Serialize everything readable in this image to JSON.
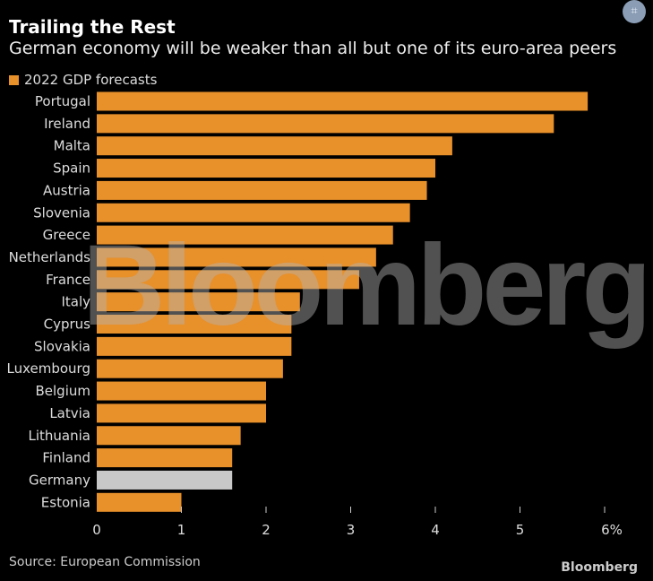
{
  "chart_data": {
    "type": "bar",
    "orientation": "horizontal",
    "title": "Trailing the Rest",
    "subtitle": "German economy will be weaker than all but one of its euro-area peers",
    "categories": [
      "Portugal",
      "Ireland",
      "Malta",
      "Spain",
      "Austria",
      "Slovenia",
      "Greece",
      "Netherlands",
      "France",
      "Italy",
      "Cyprus",
      "Slovakia",
      "Luxembourg",
      "Belgium",
      "Latvia",
      "Lithuania",
      "Finland",
      "Germany",
      "Estonia"
    ],
    "series": [
      {
        "name": "2022 GDP forecasts",
        "values": [
          5.8,
          5.4,
          4.2,
          4.0,
          3.9,
          3.7,
          3.5,
          3.3,
          3.1,
          2.4,
          2.3,
          2.3,
          2.2,
          2.0,
          2.0,
          1.7,
          1.6,
          1.6,
          1.0
        ]
      }
    ],
    "highlight": "Germany",
    "xlim": [
      0,
      6
    ],
    "xticks": [
      "0",
      "1",
      "2",
      "3",
      "4",
      "5",
      "6%"
    ],
    "grid": false,
    "legend": "top-left",
    "colors": {
      "bar": "#e8902a",
      "highlight": "#c8c8c8",
      "background": "#000000"
    }
  },
  "source": "Source: European Commission",
  "logo": "Bloomberg",
  "watermark": "Bloomberg",
  "scan_icon": "scan-icon"
}
